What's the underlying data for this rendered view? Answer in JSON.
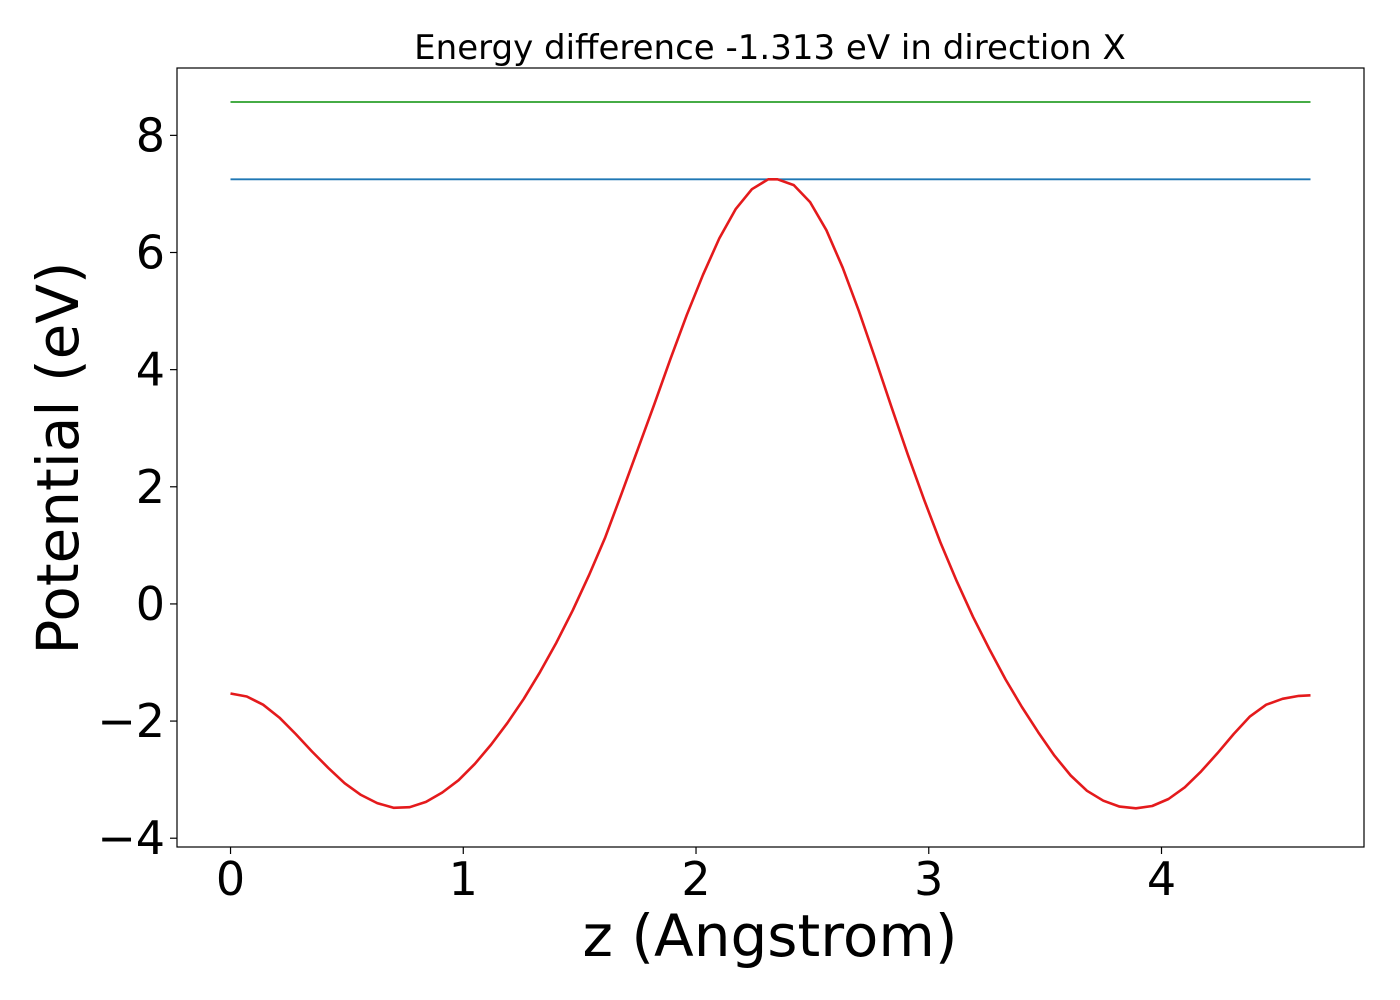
{
  "chart_data": {
    "type": "line",
    "title": "Energy difference -1.313 eV in direction X",
    "xlabel": "z (Angstrom)",
    "ylabel": "Potential (eV)",
    "xlim": [
      -0.23,
      4.87
    ],
    "ylim": [
      -4.15,
      9.15
    ],
    "x_ticks": [
      0,
      1,
      2,
      3,
      4
    ],
    "x_tick_labels": [
      "0",
      "1",
      "2",
      "3",
      "4"
    ],
    "y_ticks": [
      -4,
      -2,
      0,
      2,
      4,
      6,
      8
    ],
    "y_tick_labels": [
      "−4",
      "−2",
      "0",
      "2",
      "4",
      "6",
      "8"
    ],
    "grid": false,
    "series": [
      {
        "color": "#2ca02c",
        "x": [
          0,
          4.64
        ],
        "y": [
          8.57,
          8.57
        ]
      },
      {
        "color": "#1f77b4",
        "x": [
          0,
          4.64
        ],
        "y": [
          7.25,
          7.25
        ]
      },
      {
        "color": "#e41a1c",
        "x": [
          0,
          0.07,
          0.14,
          0.21,
          0.28,
          0.35,
          0.42,
          0.49,
          0.56,
          0.63,
          0.7,
          0.77,
          0.84,
          0.91,
          0.98,
          1.05,
          1.12,
          1.19,
          1.26,
          1.33,
          1.4,
          1.47,
          1.54,
          1.61,
          1.68,
          1.75,
          1.82,
          1.89,
          1.96,
          2.03,
          2.1,
          2.17,
          2.24,
          2.31,
          2.35,
          2.42,
          2.49,
          2.56,
          2.63,
          2.7,
          2.77,
          2.84,
          2.91,
          2.98,
          3.05,
          3.12,
          3.19,
          3.26,
          3.33,
          3.4,
          3.47,
          3.54,
          3.61,
          3.68,
          3.75,
          3.82,
          3.89,
          3.96,
          4.03,
          4.1,
          4.17,
          4.24,
          4.31,
          4.38,
          4.45,
          4.52,
          4.59,
          4.64
        ],
        "y": [
          -1.53,
          -1.58,
          -1.72,
          -1.94,
          -2.22,
          -2.52,
          -2.8,
          -3.06,
          -3.26,
          -3.4,
          -3.48,
          -3.47,
          -3.38,
          -3.22,
          -3.01,
          -2.73,
          -2.4,
          -2.03,
          -1.62,
          -1.16,
          -0.66,
          -0.11,
          0.49,
          1.14,
          1.88,
          2.64,
          3.4,
          4.18,
          4.93,
          5.62,
          6.24,
          6.74,
          7.08,
          7.25,
          7.25,
          7.15,
          6.86,
          6.38,
          5.74,
          5.0,
          4.19,
          3.36,
          2.55,
          1.78,
          1.05,
          0.39,
          -0.22,
          -0.77,
          -1.29,
          -1.76,
          -2.19,
          -2.59,
          -2.93,
          -3.19,
          -3.36,
          -3.46,
          -3.49,
          -3.45,
          -3.33,
          -3.13,
          -2.86,
          -2.55,
          -2.22,
          -1.92,
          -1.72,
          -1.62,
          -1.57,
          -1.56
        ]
      }
    ]
  }
}
